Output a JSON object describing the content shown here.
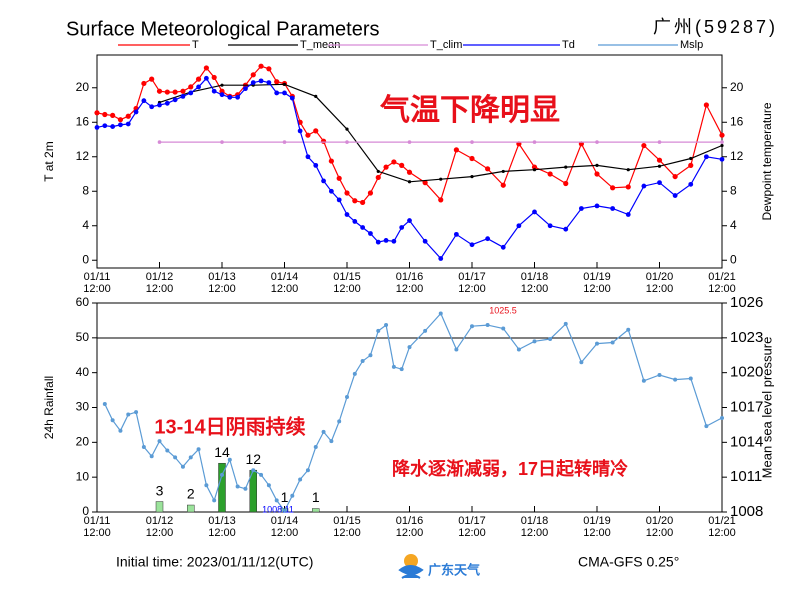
{
  "chart_data": [
    {
      "type": "line",
      "title": "Surface Meteorological Parameters",
      "subtitle": "广州(59287)",
      "y_label": "T at 2m",
      "y2_label": "Dewpoint temperature",
      "annotations": [
        "气温下降明显"
      ],
      "xlim": [
        "01/11 12:00",
        "01/21 12:00"
      ],
      "xticks": [
        {
          "value": "01/11 12:00",
          "label": "01/11\n12:00"
        },
        {
          "value": "01/12 12:00",
          "label": "01/12\n12:00"
        },
        {
          "value": "01/13 12:00",
          "label": "01/13\n12:00"
        },
        {
          "value": "01/14 12:00",
          "label": "01/14\n12:00"
        },
        {
          "value": "01/15 12:00",
          "label": "01/15\n12:00"
        },
        {
          "value": "01/16 12:00",
          "label": "01/16\n12:00"
        },
        {
          "value": "01/17 12:00",
          "label": "01/17\n12:00"
        },
        {
          "value": "01/18 12:00",
          "label": "01/18\n12:00"
        },
        {
          "value": "01/19 12:00",
          "label": "01/19\n12:00"
        },
        {
          "value": "01/20 12:00",
          "label": "01/20\n12:00"
        },
        {
          "value": "01/21 12:00",
          "label": "01/21\n12:00"
        }
      ],
      "ylim": [
        -0.9,
        23.8
      ],
      "yticks": [
        0,
        4,
        8,
        12,
        16,
        20
      ],
      "y2lim": [
        -0.9,
        23.8
      ],
      "y2ticks": [
        0,
        4,
        8,
        12,
        16,
        20
      ],
      "series": [
        {
          "name": "T",
          "color": "#ff0000",
          "marker": 2.6,
          "x": [
            "01/11 12:00",
            "01/11 15:00",
            "01/11 18:00",
            "01/11 21:00",
            "01/12 00:00",
            "01/12 03:00",
            "01/12 06:00",
            "01/12 09:00",
            "01/12 12:00",
            "01/12 15:00",
            "01/12 18:00",
            "01/12 21:00",
            "01/13 00:00",
            "01/13 03:00",
            "01/13 06:00",
            "01/13 09:00",
            "01/13 12:00",
            "01/13 15:00",
            "01/13 18:00",
            "01/13 21:00",
            "01/14 00:00",
            "01/14 03:00",
            "01/14 06:00",
            "01/14 09:00",
            "01/14 12:00",
            "01/14 15:00",
            "01/14 18:00",
            "01/14 21:00",
            "01/15 00:00",
            "01/15 03:00",
            "01/15 06:00",
            "01/15 09:00",
            "01/15 12:00",
            "01/15 15:00",
            "01/15 18:00",
            "01/15 21:00",
            "01/16 00:00",
            "01/16 03:00",
            "01/16 06:00",
            "01/16 09:00",
            "01/16 12:00",
            "01/16 18:00",
            "01/17 00:00",
            "01/17 06:00",
            "01/17 12:00",
            "01/17 18:00",
            "01/18 00:00",
            "01/18 06:00",
            "01/18 12:00",
            "01/18 18:00",
            "01/19 00:00",
            "01/19 06:00",
            "01/19 12:00",
            "01/19 18:00",
            "01/20 00:00",
            "01/20 06:00",
            "01/20 12:00",
            "01/20 18:00",
            "01/21 00:00",
            "01/21 06:00",
            "01/21 12:00"
          ],
          "values": [
            17.1,
            16.9,
            16.8,
            16.3,
            16.7,
            17.6,
            20.5,
            21.0,
            19.6,
            19.5,
            19.5,
            19.6,
            20.1,
            21.0,
            22.3,
            21.2,
            19.6,
            19.0,
            19.2,
            20.3,
            21.5,
            22.5,
            22.2,
            20.7,
            20.5,
            19.0,
            16.0,
            14.5,
            15.0,
            13.8,
            11.5,
            9.5,
            7.8,
            6.9,
            6.7,
            7.8,
            9.6,
            10.8,
            11.4,
            11.0,
            10.2,
            9.0,
            7.0,
            12.8,
            11.8,
            10.6,
            8.7,
            13.5,
            10.8,
            10.0,
            8.9,
            13.5,
            10.0,
            8.4,
            8.5,
            13.3,
            11.6,
            9.7,
            11.0,
            18.0,
            14.5
          ]
        },
        {
          "name": "T_mean",
          "color": "#000000",
          "marker": 1.6,
          "x": [
            "01/12 12:00",
            "01/13 00:00",
            "01/13 12:00",
            "01/14 00:00",
            "01/14 12:00",
            "01/15 00:00",
            "01/15 12:00",
            "01/16 00:00",
            "01/16 12:00",
            "01/17 00:00",
            "01/17 12:00",
            "01/18 00:00",
            "01/18 12:00",
            "01/19 00:00",
            "01/19 12:00",
            "01/20 00:00",
            "01/20 12:00",
            "01/21 00:00",
            "01/21 12:00"
          ],
          "values": [
            18.3,
            19.5,
            20.3,
            20.3,
            20.4,
            19.0,
            15.2,
            10.3,
            9.1,
            9.4,
            9.7,
            10.3,
            10.5,
            10.8,
            11.0,
            10.5,
            10.9,
            11.8,
            13.3
          ]
        },
        {
          "name": "T_clim",
          "color": "#d68ad6",
          "marker": 1.8,
          "x": [
            "01/12 12:00",
            "01/13 12:00",
            "01/14 12:00",
            "01/15 12:00",
            "01/16 12:00",
            "01/17 12:00",
            "01/18 12:00",
            "01/19 12:00",
            "01/20 12:00",
            "01/21 12:00"
          ],
          "values": [
            13.7,
            13.7,
            13.7,
            13.7,
            13.7,
            13.7,
            13.7,
            13.7,
            13.7,
            13.7
          ]
        },
        {
          "name": "Td",
          "color": "#0000ff",
          "marker": 2.4,
          "axis": "y2",
          "x": [
            "01/11 12:00",
            "01/11 15:00",
            "01/11 18:00",
            "01/11 21:00",
            "01/12 00:00",
            "01/12 03:00",
            "01/12 06:00",
            "01/12 09:00",
            "01/12 12:00",
            "01/12 15:00",
            "01/12 18:00",
            "01/12 21:00",
            "01/13 00:00",
            "01/13 03:00",
            "01/13 06:00",
            "01/13 09:00",
            "01/13 12:00",
            "01/13 15:00",
            "01/13 18:00",
            "01/13 21:00",
            "01/14 00:00",
            "01/14 03:00",
            "01/14 06:00",
            "01/14 09:00",
            "01/14 12:00",
            "01/14 15:00",
            "01/14 18:00",
            "01/14 21:00",
            "01/15 00:00",
            "01/15 03:00",
            "01/15 06:00",
            "01/15 09:00",
            "01/15 12:00",
            "01/15 15:00",
            "01/15 18:00",
            "01/15 21:00",
            "01/16 00:00",
            "01/16 03:00",
            "01/16 06:00",
            "01/16 09:00",
            "01/16 12:00",
            "01/16 18:00",
            "01/17 00:00",
            "01/17 06:00",
            "01/17 12:00",
            "01/17 18:00",
            "01/18 00:00",
            "01/18 06:00",
            "01/18 12:00",
            "01/18 18:00",
            "01/19 00:00",
            "01/19 06:00",
            "01/19 12:00",
            "01/19 18:00",
            "01/20 00:00",
            "01/20 06:00",
            "01/20 12:00",
            "01/20 18:00",
            "01/21 00:00",
            "01/21 06:00",
            "01/21 12:00"
          ],
          "values": [
            15.4,
            15.6,
            15.5,
            15.7,
            15.8,
            17.2,
            18.5,
            17.8,
            18.0,
            18.2,
            18.6,
            19.0,
            19.4,
            20.1,
            21.1,
            19.6,
            19.2,
            18.9,
            18.9,
            19.9,
            20.6,
            20.8,
            20.6,
            19.4,
            19.4,
            18.8,
            15.0,
            12.0,
            11.0,
            9.2,
            8.0,
            7.0,
            5.3,
            4.5,
            3.8,
            3.1,
            2.1,
            2.3,
            2.2,
            3.8,
            4.6,
            2.2,
            0.2,
            3.0,
            1.8,
            2.5,
            1.5,
            4.0,
            5.6,
            4.0,
            3.6,
            6.0,
            6.3,
            6.0,
            5.3,
            8.6,
            9.0,
            7.5,
            8.8,
            12.0,
            11.7
          ]
        }
      ]
    },
    {
      "type": "combo",
      "y_label": "24h Rainfall",
      "y2_label": "Mean sea level pressure",
      "annotations": [
        "13-14日阴雨持续",
        "降水逐渐减弱，17日起转晴冷",
        "1025.5",
        "1008.11"
      ],
      "xlim": [
        "01/11 12:00",
        "01/21 12:00"
      ],
      "xticks": [
        {
          "value": "01/11 12:00",
          "label": "01/11\n12:00"
        },
        {
          "value": "01/12 12:00",
          "label": "01/12\n12:00"
        },
        {
          "value": "01/13 12:00",
          "label": "01/13\n12:00"
        },
        {
          "value": "01/14 12:00",
          "label": "01/14\n12:00"
        },
        {
          "value": "01/15 12:00",
          "label": "01/15\n12:00"
        },
        {
          "value": "01/16 12:00",
          "label": "01/16\n12:00"
        },
        {
          "value": "01/17 12:00",
          "label": "01/17\n12:00"
        },
        {
          "value": "01/18 12:00",
          "label": "01/18\n12:00"
        },
        {
          "value": "01/19 12:00",
          "label": "01/19\n12:00"
        },
        {
          "value": "01/20 12:00",
          "label": "01/20\n12:00"
        },
        {
          "value": "01/21 12:00",
          "label": "01/21\n12:00"
        }
      ],
      "ylim": [
        0,
        60
      ],
      "yticks": [
        0,
        10,
        20,
        30,
        40,
        50,
        60
      ],
      "y2lim": [
        1008,
        1026
      ],
      "y2ticks": [
        1008,
        1011,
        1014,
        1017,
        1020,
        1023,
        1026
      ],
      "series": [
        {
          "type": "bar",
          "colors": [
            "#9be39b",
            "#9be39b",
            "#2ca02c",
            "#2ca02c",
            "#9be39b",
            "#9be39b"
          ],
          "x": [
            "01/12 12:00",
            "01/13 00:00",
            "01/13 12:00",
            "01/14 00:00",
            "01/14 12:00",
            "01/15 00:00"
          ],
          "values": [
            3,
            2,
            14,
            12,
            1,
            1
          ]
        },
        {
          "type": "line",
          "name": "Mslp",
          "color": "#5b9bd5",
          "marker": 2,
          "axis": "y2",
          "x": [
            "01/11 15:00",
            "01/11 18:00",
            "01/11 21:00",
            "01/12 00:00",
            "01/12 03:00",
            "01/12 06:00",
            "01/12 09:00",
            "01/12 12:00",
            "01/12 15:00",
            "01/12 18:00",
            "01/12 21:00",
            "01/13 00:00",
            "01/13 03:00",
            "01/13 06:00",
            "01/13 09:00",
            "01/13 12:00",
            "01/13 15:00",
            "01/13 18:00",
            "01/13 21:00",
            "01/14 00:00",
            "01/14 03:00",
            "01/14 06:00",
            "01/14 09:00",
            "01/14 12:00",
            "01/14 15:00",
            "01/14 18:00",
            "01/14 21:00",
            "01/15 00:00",
            "01/15 03:00",
            "01/15 06:00",
            "01/15 09:00",
            "01/15 12:00",
            "01/15 15:00",
            "01/15 18:00",
            "01/15 21:00",
            "01/16 00:00",
            "01/16 03:00",
            "01/16 06:00",
            "01/16 09:00",
            "01/16 12:00",
            "01/16 18:00",
            "01/17 00:00",
            "01/17 06:00",
            "01/17 12:00",
            "01/17 18:00",
            "01/18 00:00",
            "01/18 06:00",
            "01/18 12:00",
            "01/18 18:00",
            "01/19 00:00",
            "01/19 06:00",
            "01/19 12:00",
            "01/19 18:00",
            "01/20 00:00",
            "01/20 06:00",
            "01/20 12:00",
            "01/20 18:00",
            "01/21 00:00",
            "01/21 06:00",
            "01/21 12:00"
          ],
          "values": [
            1017.3,
            1015.9,
            1015.0,
            1016.4,
            1016.6,
            1013.6,
            1012.8,
            1014.1,
            1013.3,
            1012.7,
            1011.9,
            1012.7,
            1013.4,
            1010.3,
            1009.0,
            1011.2,
            1012.5,
            1010.2,
            1010.0,
            1011.6,
            1011.2,
            1010.3,
            1009.0,
            1008.1,
            1009.4,
            1010.8,
            1011.6,
            1013.6,
            1014.9,
            1014.1,
            1015.8,
            1017.9,
            1019.9,
            1021.0,
            1021.5,
            1023.6,
            1024.1,
            1020.5,
            1020.3,
            1022.2,
            1023.6,
            1025.1,
            1022.0,
            1024.0,
            1024.1,
            1023.8,
            1022.0,
            1022.7,
            1022.9,
            1024.2,
            1020.9,
            1022.5,
            1022.6,
            1023.7,
            1019.3,
            1019.8,
            1019.4,
            1019.5,
            1015.4,
            1016.1
          ]
        }
      ]
    }
  ],
  "footer": {
    "initial_time": "Initial time: 2023/01/11/12(UTC)",
    "logo_text": "广东天气",
    "model": "CMA-GFS  0.25°"
  }
}
